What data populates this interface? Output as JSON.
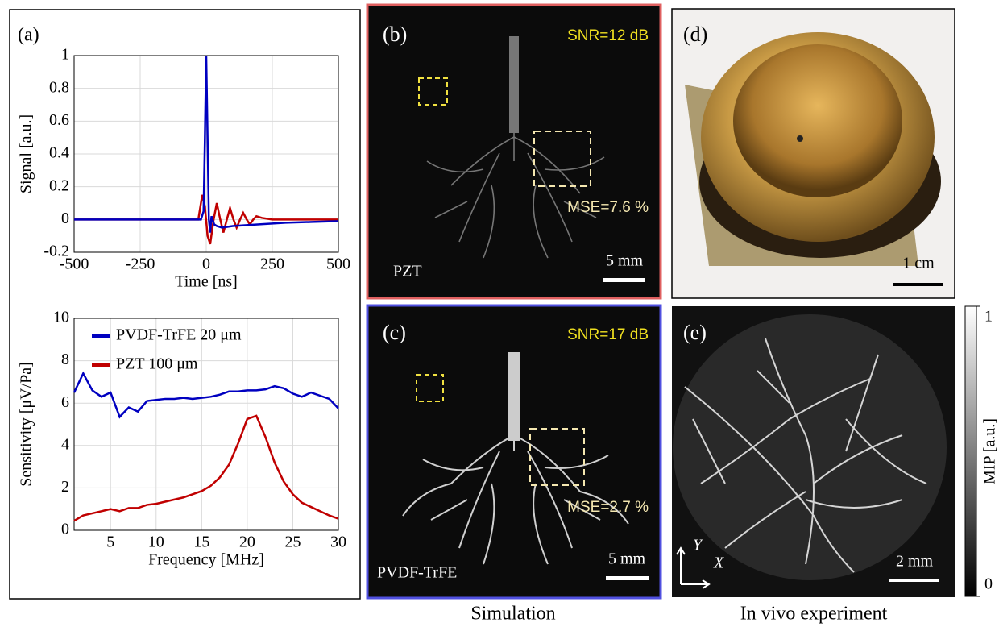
{
  "panel_label": "(a)",
  "chart_data": [
    {
      "type": "line",
      "x_label": "Time [ns]",
      "y_label": "Signal [a.u.]",
      "xlim": [
        -500,
        500
      ],
      "xticks": [
        -500,
        -250,
        0,
        250,
        500
      ],
      "ylim": [
        -0.2,
        1
      ],
      "yticks": [
        -0.2,
        0,
        0.2,
        0.4,
        0.6,
        0.8,
        1
      ],
      "grid": true,
      "series": [
        {
          "color": "#c00000",
          "x": [
            -500,
            -30,
            -15,
            -5,
            5,
            15,
            28,
            40,
            53,
            65,
            78,
            90,
            103,
            115,
            128,
            140,
            153,
            165,
            178,
            190,
            210,
            250,
            300,
            350,
            400,
            450,
            500
          ],
          "values": [
            0,
            0,
            0.15,
            0.08,
            -0.1,
            -0.15,
            0,
            0.1,
            0,
            -0.08,
            0,
            0.07,
            0,
            -0.05,
            0,
            0.04,
            0,
            -0.03,
            0,
            0.02,
            0.01,
            0,
            0,
            0,
            0,
            0,
            0
          ]
        },
        {
          "color": "#0000c0",
          "x": [
            -500,
            -20,
            -10,
            -5,
            0,
            5,
            10,
            15,
            20,
            30,
            40,
            60,
            100,
            200,
            300,
            400,
            500
          ],
          "values": [
            0,
            0,
            0.05,
            0.5,
            1,
            0.5,
            0,
            -0.08,
            0.02,
            -0.03,
            -0.04,
            -0.05,
            -0.04,
            -0.03,
            -0.02,
            -0.015,
            -0.01
          ]
        }
      ]
    },
    {
      "type": "line",
      "x_label": "Frequency [MHz]",
      "y_label": "Sensitivity  [μV/Pa]",
      "xlim": [
        1,
        30
      ],
      "xticks": [
        5,
        10,
        15,
        20,
        25,
        30
      ],
      "ylim": [
        0,
        10
      ],
      "yticks": [
        0,
        2,
        4,
        6,
        8,
        10
      ],
      "grid": true,
      "legend": "upper left",
      "x": [
        1,
        2,
        3,
        4,
        5,
        6,
        7,
        8,
        9,
        10,
        11,
        12,
        13,
        14,
        15,
        16,
        17,
        18,
        19,
        20,
        21,
        22,
        23,
        24,
        25,
        26,
        27,
        28,
        29,
        30
      ],
      "series": [
        {
          "name": "PVDF-TrFE 20 μm",
          "color": "#0000c0",
          "values": [
            6.5,
            7.4,
            6.6,
            6.3,
            6.5,
            5.35,
            5.8,
            5.6,
            6.1,
            6.15,
            6.2,
            6.2,
            6.25,
            6.2,
            6.25,
            6.3,
            6.4,
            6.55,
            6.55,
            6.6,
            6.6,
            6.65,
            6.8,
            6.7,
            6.45,
            6.3,
            6.5,
            6.35,
            6.2,
            5.75
          ]
        },
        {
          "name": "PZT 100 μm",
          "color": "#c00000",
          "values": [
            0.45,
            0.7,
            0.8,
            0.9,
            1.0,
            0.9,
            1.05,
            1.05,
            1.2,
            1.25,
            1.35,
            1.45,
            1.55,
            1.7,
            1.85,
            2.1,
            2.5,
            3.1,
            4.1,
            5.25,
            5.4,
            4.4,
            3.2,
            2.3,
            1.7,
            1.3,
            1.1,
            0.9,
            0.7,
            0.55
          ]
        }
      ]
    }
  ],
  "images": [
    {
      "label": "(b)",
      "snr": "SNR=12 dB",
      "mse": "MSE=7.6 %",
      "material": "PZT",
      "scale": "5 mm"
    },
    {
      "label": "(c)",
      "snr": "SNR=17 dB",
      "mse": "MSE=2.7 %",
      "material": "PVDF-TrFE",
      "scale": "5 mm"
    },
    {
      "label": "(d)",
      "scale": "1 cm"
    },
    {
      "label": "(e)",
      "scale": "2 mm",
      "axis_y": "Y",
      "axis_x": "X"
    }
  ],
  "colorbar": {
    "label": "MIP [a.u.]",
    "ylim": [
      0,
      1
    ],
    "yticks": [
      0,
      1
    ]
  },
  "captions": [
    "Simulation",
    "In vivo experiment"
  ]
}
